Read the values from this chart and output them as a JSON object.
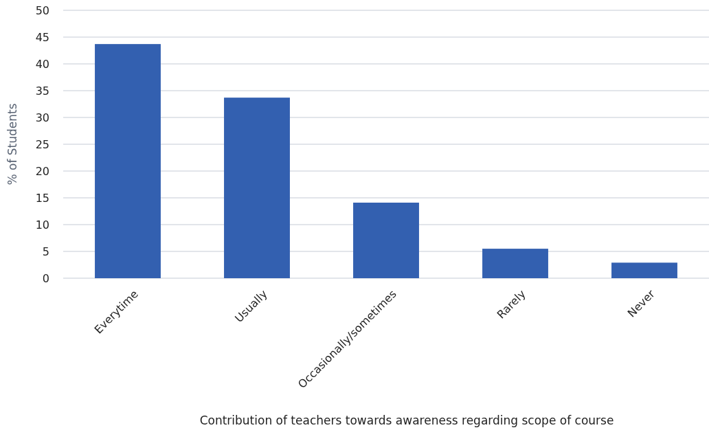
{
  "chart_data": {
    "type": "bar",
    "xlabel": "Contribution of teachers towards awareness regarding scope of course",
    "ylabel": "% of Students",
    "categories": [
      "Everytime",
      "Usually",
      "Occasionally/sometimes",
      "Rarely",
      "Never"
    ],
    "values": [
      43.7,
      33.7,
      14.1,
      5.5,
      2.9
    ],
    "color": "#3360b0",
    "ylim": [
      0,
      50
    ],
    "yticks": [
      0,
      5,
      10,
      15,
      20,
      25,
      30,
      35,
      40,
      45,
      50
    ],
    "grid": "y"
  }
}
